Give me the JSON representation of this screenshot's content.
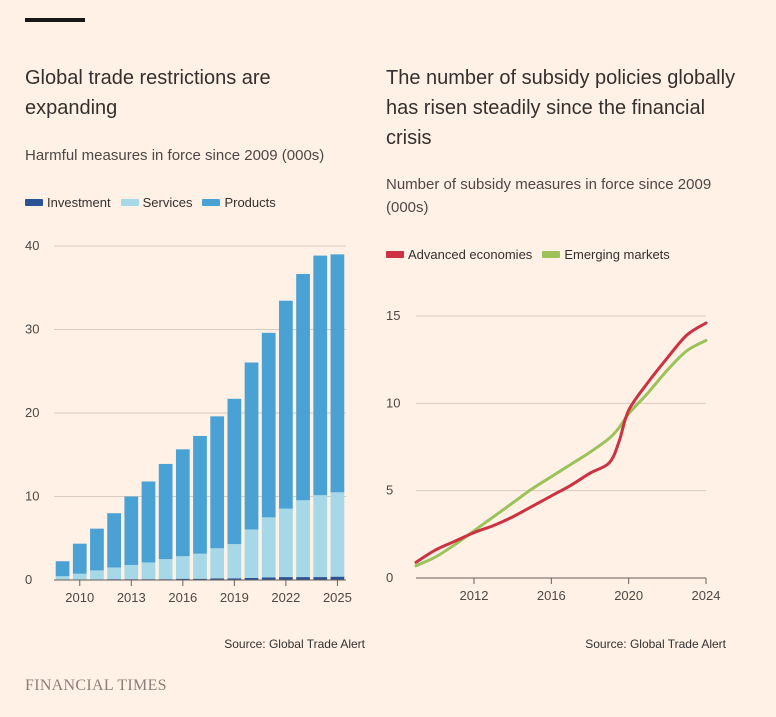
{
  "colors": {
    "background": "#fff1e5",
    "investment": "#2a5294",
    "services": "#a6d8e8",
    "products": "#4aa2d4",
    "advanced": "#cc3242",
    "emerging": "#9cc25a"
  },
  "brand": "FINANCIAL TIMES",
  "chart_data": [
    {
      "type": "bar",
      "stacked": true,
      "title": "Global trade restrictions are expanding",
      "subtitle": "Harmful measures in force since 2009 (000s)",
      "source": "Source: Global Trade Alert",
      "legend_placement": "top-left",
      "categories": [
        "2009",
        "2010",
        "2011",
        "2012",
        "2013",
        "2014",
        "2015",
        "2016",
        "2017",
        "2018",
        "2019",
        "2020",
        "2021",
        "2022",
        "2023",
        "2024",
        "2025"
      ],
      "xtick_labels": [
        "2010",
        "2013",
        "2016",
        "2019",
        "2022",
        "2025"
      ],
      "yticks": [
        "0",
        "10",
        "20",
        "30",
        "40"
      ],
      "ylim": [
        0,
        40
      ],
      "grid": true,
      "series": [
        {
          "name": "Investment",
          "values": [
            0.05,
            0.05,
            0.05,
            0.1,
            0.1,
            0.1,
            0.1,
            0.15,
            0.15,
            0.2,
            0.2,
            0.25,
            0.3,
            0.35,
            0.35,
            0.35,
            0.4
          ]
        },
        {
          "name": "Services",
          "values": [
            0.4,
            0.7,
            1.1,
            1.4,
            1.7,
            2.0,
            2.4,
            2.7,
            3.0,
            3.6,
            4.1,
            5.8,
            7.2,
            8.2,
            9.2,
            9.8,
            10.1
          ]
        },
        {
          "name": "Products",
          "values": [
            1.8,
            3.6,
            5.0,
            6.5,
            8.2,
            9.7,
            11.4,
            12.8,
            14.1,
            15.8,
            17.4,
            20.0,
            22.1,
            24.9,
            27.1,
            28.7,
            28.5
          ]
        }
      ]
    },
    {
      "type": "line",
      "title": "The number of subsidy policies globally has risen steadily since the financial crisis",
      "subtitle": "Number of subsidy measures in force since 2009 (000s)",
      "source": "Source: Global Trade Alert",
      "legend_placement": "top-left",
      "xlim": [
        2009,
        2024
      ],
      "xticks": [
        "2012",
        "2016",
        "2020",
        "2024"
      ],
      "yticks": [
        "0",
        "5",
        "10",
        "15"
      ],
      "ylim": [
        0,
        15
      ],
      "grid": true,
      "series": [
        {
          "name": "Advanced economies",
          "x": [
            2009,
            2010,
            2011,
            2012,
            2013,
            2014,
            2015,
            2016,
            2017,
            2018,
            2019,
            2019.5,
            2020,
            2021,
            2022,
            2023,
            2024
          ],
          "values": [
            0.9,
            1.6,
            2.1,
            2.6,
            3.0,
            3.5,
            4.1,
            4.7,
            5.3,
            6.0,
            6.6,
            7.8,
            9.6,
            11.2,
            12.6,
            13.9,
            14.6
          ]
        },
        {
          "name": "Emerging markets",
          "x": [
            2009,
            2010,
            2011,
            2012,
            2013,
            2014,
            2015,
            2016,
            2017,
            2018,
            2019,
            2019.5,
            2020,
            2021,
            2022,
            2023,
            2024
          ],
          "values": [
            0.7,
            1.2,
            1.9,
            2.7,
            3.5,
            4.3,
            5.1,
            5.8,
            6.5,
            7.2,
            8.0,
            8.6,
            9.4,
            10.6,
            11.9,
            13.0,
            13.6
          ]
        }
      ]
    }
  ]
}
